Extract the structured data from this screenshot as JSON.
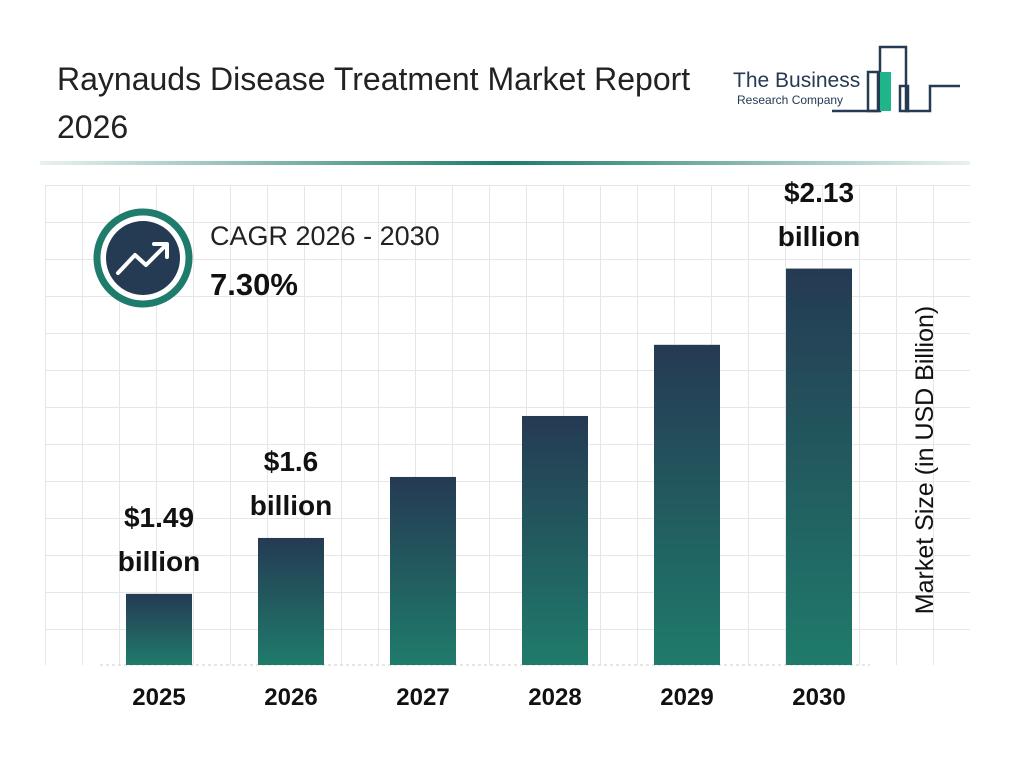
{
  "chart_data": {
    "type": "bar",
    "title": "Raynauds Disease Treatment Market Report 2026",
    "y_label": "Market Size (in USD Billion)",
    "cagr_label": "CAGR 2026 - 2030",
    "cagr_value": "7.30%",
    "categories": [
      "2025",
      "2026",
      "2027",
      "2028",
      "2029",
      "2030"
    ],
    "values": [
      1.49,
      1.6,
      1.72,
      1.84,
      1.98,
      2.13
    ],
    "value_labels": [
      "$1.49 billion",
      "$1.6 billion",
      null,
      null,
      null,
      "$2.13 billion"
    ],
    "colors": [
      "#253a53",
      "#1f7b6b"
    ],
    "ylim": [
      1.35,
      2.2
    ]
  },
  "logo": {
    "line1": "The Business",
    "line2": "Research Company"
  }
}
